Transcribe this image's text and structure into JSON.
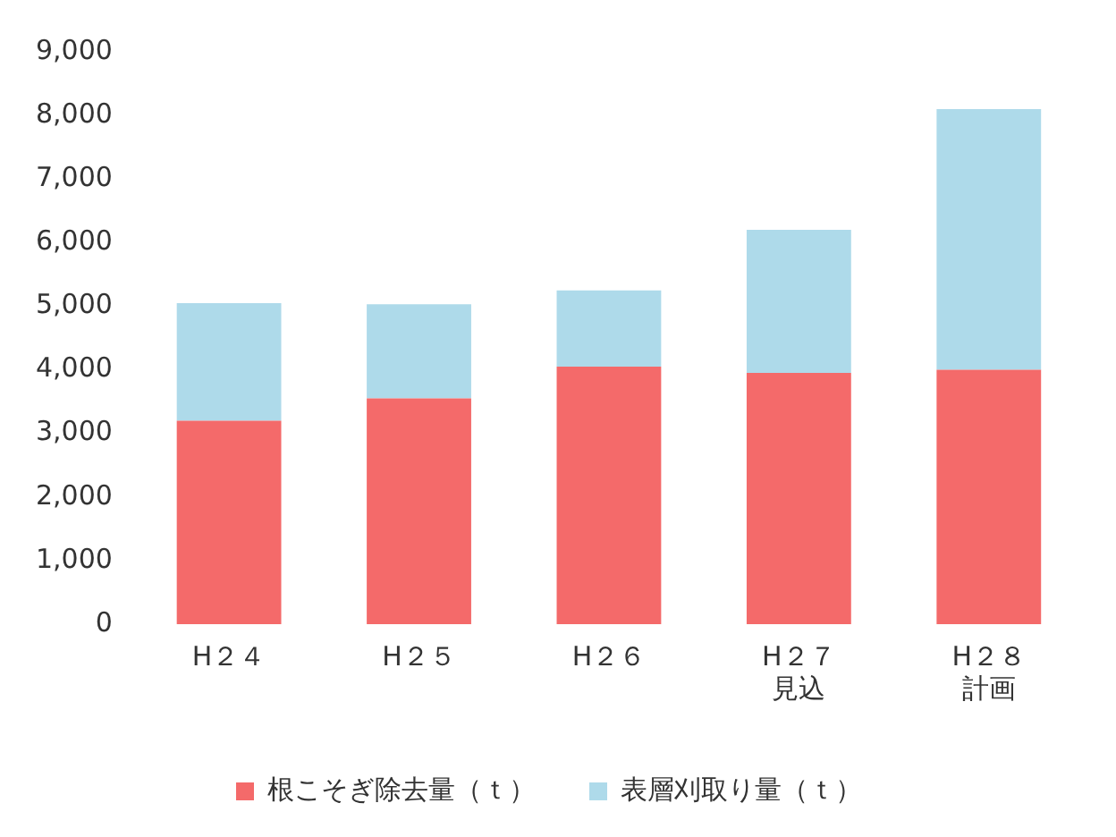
{
  "chart_data": {
    "type": "bar",
    "stacked": true,
    "categories": [
      "H２４",
      "H２５",
      "H２６",
      "H２７見込",
      "H２８計画"
    ],
    "series": [
      {
        "name": "根こそぎ除去量（ｔ）",
        "color": "#f46a6a",
        "values": [
          3200,
          3550,
          4050,
          3950,
          4000
        ]
      },
      {
        "name": "表層刈取り量（ｔ）",
        "color": "#aedaea",
        "values": [
          1850,
          1480,
          1200,
          2250,
          4100
        ]
      }
    ],
    "ylim": [
      0,
      9000
    ],
    "yticks": [
      {
        "value": 0,
        "label": "0"
      },
      {
        "value": 1000,
        "label": "1,000"
      },
      {
        "value": 2000,
        "label": "2,000"
      },
      {
        "value": 3000,
        "label": "3,000"
      },
      {
        "value": 4000,
        "label": "4,000"
      },
      {
        "value": 5000,
        "label": "5,000"
      },
      {
        "value": 6000,
        "label": "6,000"
      },
      {
        "value": 7000,
        "label": "7,000"
      },
      {
        "value": 8000,
        "label": "8,000"
      },
      {
        "value": 9000,
        "label": "9,000"
      }
    ],
    "grid": false,
    "legend": "bottom"
  }
}
